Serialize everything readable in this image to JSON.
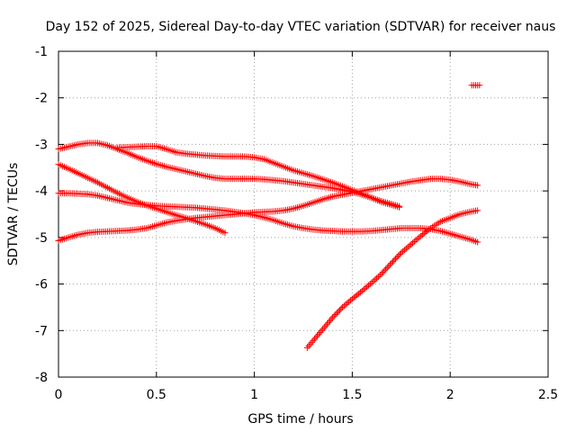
{
  "chart_data": {
    "type": "scatter",
    "title": "Day 152 of 2025, Sidereal Day-to-day VTEC variation (SDTVAR) for receiver naus",
    "xlabel": "GPS time / hours",
    "ylabel": "SDTVAR / TECUs",
    "xlim": [
      0,
      2.5
    ],
    "ylim": [
      -8,
      -1
    ],
    "x_ticks": [
      0,
      0.5,
      1,
      1.5,
      2,
      2.5
    ],
    "x_tick_labels": [
      "0",
      "0.5",
      "1",
      "1.5",
      "2",
      "2.5"
    ],
    "y_ticks": [
      -8,
      -7,
      -6,
      -5,
      -4,
      -3,
      -2,
      -1
    ],
    "y_tick_labels": [
      "-8",
      "-7",
      "-6",
      "-5",
      "-4",
      "-3",
      "-2",
      "-1"
    ],
    "grid": true,
    "marker": "plus",
    "color": "#ff0000",
    "series": [
      {
        "x": [
          0.0,
          0.05,
          0.1,
          0.15,
          0.2,
          0.25,
          0.3,
          0.35,
          0.4,
          0.45,
          0.5,
          0.55,
          0.6,
          0.65,
          0.7,
          0.75,
          0.8,
          0.85,
          0.9,
          0.95,
          1.0,
          1.05,
          1.1,
          1.15,
          1.2,
          1.25,
          1.3,
          1.35,
          1.4,
          1.45,
          1.5,
          1.55,
          1.6,
          1.65,
          1.7,
          1.74
        ],
        "y": [
          -3.1,
          -3.05,
          -3.0,
          -2.97,
          -2.97,
          -3.02,
          -3.1,
          -3.18,
          -3.27,
          -3.35,
          -3.42,
          -3.48,
          -3.53,
          -3.58,
          -3.63,
          -3.68,
          -3.72,
          -3.74,
          -3.74,
          -3.74,
          -3.74,
          -3.75,
          -3.77,
          -3.79,
          -3.82,
          -3.85,
          -3.88,
          -3.91,
          -3.94,
          -3.98,
          -4.02,
          -4.08,
          -4.15,
          -4.22,
          -4.28,
          -4.33
        ]
      },
      {
        "x": [
          0.3,
          0.35,
          0.4,
          0.45,
          0.5,
          0.55,
          0.6,
          0.65,
          0.7,
          0.75,
          0.8,
          0.85,
          0.9,
          0.95,
          1.0,
          1.05,
          1.1,
          1.15,
          1.2,
          1.25,
          1.3,
          1.35,
          1.4,
          1.45,
          1.5,
          1.55,
          1.6,
          1.65,
          1.7,
          1.74
        ],
        "y": [
          -3.07,
          -3.06,
          -3.05,
          -3.04,
          -3.04,
          -3.1,
          -3.17,
          -3.2,
          -3.22,
          -3.24,
          -3.25,
          -3.26,
          -3.26,
          -3.26,
          -3.28,
          -3.32,
          -3.4,
          -3.48,
          -3.56,
          -3.62,
          -3.68,
          -3.75,
          -3.82,
          -3.9,
          -3.98,
          -4.06,
          -4.15,
          -4.24,
          -4.3,
          -4.35
        ]
      },
      {
        "x": [
          0.0,
          0.05,
          0.1,
          0.15,
          0.2,
          0.25,
          0.3,
          0.35,
          0.4,
          0.45,
          0.5,
          0.55,
          0.6,
          0.65,
          0.7,
          0.75,
          0.8,
          0.85
        ],
        "y": [
          -3.43,
          -3.52,
          -3.62,
          -3.72,
          -3.82,
          -3.93,
          -4.04,
          -4.14,
          -4.23,
          -4.31,
          -4.38,
          -4.45,
          -4.52,
          -4.58,
          -4.65,
          -4.72,
          -4.8,
          -4.9
        ]
      },
      {
        "x": [
          0.0,
          0.05,
          0.1,
          0.15,
          0.2,
          0.25,
          0.3,
          0.35,
          0.4,
          0.45,
          0.5,
          0.55,
          0.6,
          0.65,
          0.7,
          0.75,
          0.8,
          0.85,
          0.9,
          0.95,
          1.0,
          1.05,
          1.1,
          1.15,
          1.2,
          1.25,
          1.3,
          1.35,
          1.4,
          1.45,
          1.5,
          1.55,
          1.6,
          1.65,
          1.7,
          1.75,
          1.8,
          1.85,
          1.9,
          1.95,
          2.0,
          2.05,
          2.1,
          2.14
        ],
        "y": [
          -4.05,
          -4.05,
          -4.06,
          -4.07,
          -4.1,
          -4.15,
          -4.2,
          -4.25,
          -4.28,
          -4.3,
          -4.32,
          -4.33,
          -4.34,
          -4.35,
          -4.36,
          -4.38,
          -4.4,
          -4.42,
          -4.45,
          -4.48,
          -4.52,
          -4.57,
          -4.63,
          -4.7,
          -4.76,
          -4.8,
          -4.83,
          -4.85,
          -4.86,
          -4.87,
          -4.87,
          -4.87,
          -4.86,
          -4.84,
          -4.82,
          -4.8,
          -4.8,
          -4.8,
          -4.82,
          -4.86,
          -4.92,
          -4.98,
          -5.04,
          -5.1
        ]
      },
      {
        "x": [
          0.0,
          0.05,
          0.1,
          0.15,
          0.2,
          0.25,
          0.3,
          0.35,
          0.4,
          0.45,
          0.5,
          0.55,
          0.6,
          0.65,
          0.7,
          0.75,
          0.8,
          0.85,
          0.9,
          0.95,
          1.0,
          1.05,
          1.1,
          1.15,
          1.2,
          1.25,
          1.3,
          1.35,
          1.4,
          1.45,
          1.5,
          1.55,
          1.6,
          1.65,
          1.7,
          1.75,
          1.8,
          1.85,
          1.9,
          1.95,
          2.0,
          2.05,
          2.1,
          2.14
        ],
        "y": [
          -5.07,
          -5.0,
          -4.94,
          -4.9,
          -4.88,
          -4.87,
          -4.86,
          -4.85,
          -4.83,
          -4.8,
          -4.74,
          -4.68,
          -4.64,
          -4.61,
          -4.58,
          -4.56,
          -4.54,
          -4.52,
          -4.5,
          -4.48,
          -4.46,
          -4.45,
          -4.44,
          -4.42,
          -4.38,
          -4.32,
          -4.25,
          -4.18,
          -4.12,
          -4.08,
          -4.04,
          -4.0,
          -3.96,
          -3.92,
          -3.88,
          -3.84,
          -3.8,
          -3.77,
          -3.74,
          -3.74,
          -3.76,
          -3.8,
          -3.85,
          -3.88
        ]
      },
      {
        "x": [
          1.27,
          1.3,
          1.35,
          1.4,
          1.45,
          1.5,
          1.55,
          1.6,
          1.65,
          1.7,
          1.75,
          1.8,
          1.85,
          1.9,
          1.95,
          2.0,
          2.05,
          2.1,
          2.14
        ],
        "y": [
          -7.37,
          -7.22,
          -6.97,
          -6.72,
          -6.5,
          -6.32,
          -6.15,
          -5.97,
          -5.78,
          -5.55,
          -5.33,
          -5.15,
          -4.97,
          -4.8,
          -4.66,
          -4.58,
          -4.5,
          -4.45,
          -4.42
        ]
      },
      {
        "x": [
          2.11,
          2.12,
          2.13,
          2.14,
          2.15
        ],
        "y": [
          -1.73,
          -1.73,
          -1.73,
          -1.73,
          -1.73
        ]
      }
    ]
  }
}
